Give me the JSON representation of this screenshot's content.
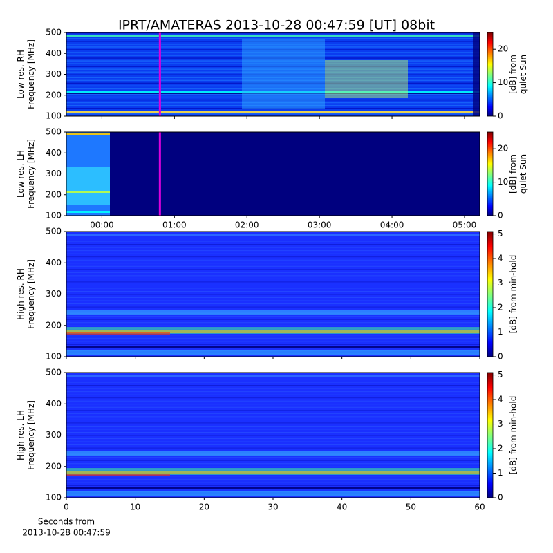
{
  "chart_data": [
    {
      "type": "heatmap",
      "title": "IPRT/AMATERAS 2013-10-28 00:47:59 [UT]   08bit",
      "ylabel": [
        "Low res. RH",
        "Frequency [MHz]"
      ],
      "ylim": [
        100,
        500
      ],
      "yticks": [
        100,
        200,
        300,
        400,
        500
      ],
      "colormap": "jet",
      "cursor": 0.8,
      "cursor_color": "#dd00dd",
      "colorbar": {
        "label": [
          "[dB] from",
          "quiet Sun"
        ],
        "lim": [
          0,
          25
        ],
        "ticks": [
          0,
          10,
          20
        ]
      }
    },
    {
      "type": "heatmap",
      "ylabel": [
        "Low res. LH",
        "Frequency [MHz]"
      ],
      "ylim": [
        100,
        500
      ],
      "yticks": [
        100,
        200,
        300,
        400,
        500
      ],
      "xlim": [
        -0.49,
        5.21
      ],
      "xticks": [
        {
          "value": 0,
          "label": "00:00"
        },
        {
          "value": 1,
          "label": "01:00"
        },
        {
          "value": 2,
          "label": "02:00"
        },
        {
          "value": 3,
          "label": "03:00"
        },
        {
          "value": 4,
          "label": "04:00"
        },
        {
          "value": 5,
          "label": "05:00"
        }
      ],
      "colormap": "jet",
      "cursor": 0.8,
      "cursor_color": "#dd00dd",
      "colorbar": {
        "label": [
          "[dB] from",
          "quiet Sun"
        ],
        "lim": [
          0,
          25
        ],
        "ticks": [
          0,
          10,
          20
        ]
      }
    },
    {
      "type": "heatmap",
      "ylabel": [
        "High res. RH",
        "Frequency [MHz]"
      ],
      "ylim": [
        100,
        500
      ],
      "yticks": [
        100,
        200,
        300,
        400,
        500
      ],
      "colormap": "jet",
      "colorbar": {
        "label": [
          "[dB] from min-hold"
        ],
        "lim": [
          0,
          5.1
        ],
        "ticks": [
          0,
          1,
          2,
          3,
          4,
          5
        ]
      }
    },
    {
      "type": "heatmap",
      "ylabel": [
        "High res. LH",
        "Frequency [MHz]"
      ],
      "ylim": [
        100,
        500
      ],
      "yticks": [
        100,
        200,
        300,
        400,
        500
      ],
      "xlim": [
        0,
        60
      ],
      "xticks": [
        0,
        10,
        20,
        30,
        40,
        50,
        60
      ],
      "xlabel": [
        "Seconds from",
        "2013-10-28 00:47:59"
      ],
      "colormap": "jet",
      "colorbar": {
        "label": [
          "[dB] from min-hold"
        ],
        "lim": [
          0,
          5.1
        ],
        "ticks": [
          0,
          1,
          2,
          3,
          4,
          5
        ]
      }
    }
  ]
}
